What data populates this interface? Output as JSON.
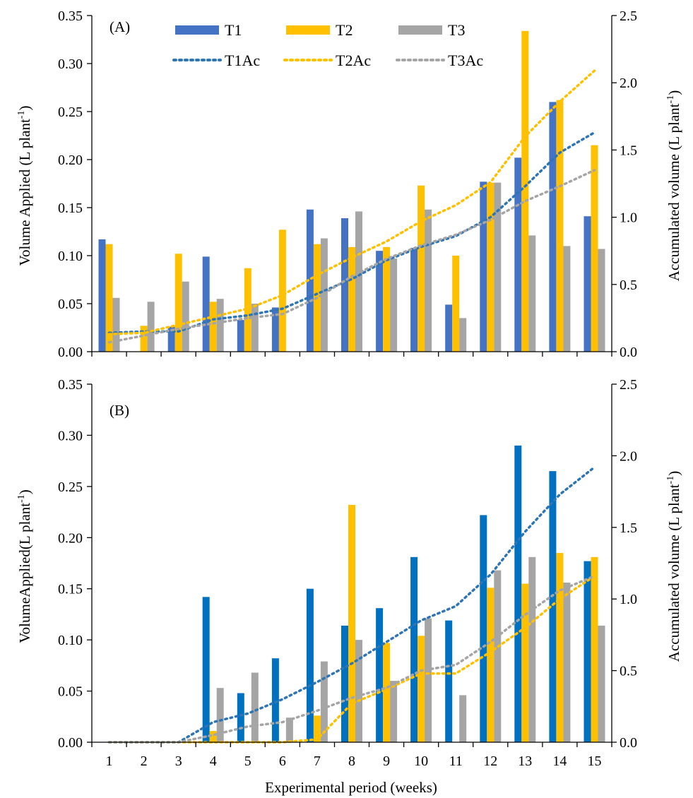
{
  "colors": {
    "T1_A": "#4472C4",
    "T1_B": "#0070C0",
    "T2": "#FFC000",
    "T3": "#A5A5A5",
    "T1Ac": "#2E75B6",
    "T2Ac": "#FFC000",
    "T3Ac": "#A5A5A5"
  },
  "legend": {
    "T1": "T1",
    "T2": "T2",
    "T3": "T3",
    "T1Ac": "T1Ac",
    "T2Ac": "T2Ac",
    "T3Ac": "T3Ac"
  },
  "xlabel": "Experimental period (weeks)",
  "chart_data": [
    {
      "panel": "(A)",
      "type": "bar",
      "categories": [
        "1",
        "2",
        "3",
        "4",
        "5",
        "6",
        "7",
        "8",
        "9",
        "10",
        "11",
        "12",
        "13",
        "14",
        "15"
      ],
      "ylabel_left_main": "Volume  Applied  (L  plant",
      "ylabel_left_sup": "-1",
      "ylabel_left_end": ")",
      "ylabel_right_main": "Accumulated  volume  (L  plant",
      "ylabel_right_sup": "-1",
      "ylabel_right_end": ")",
      "ylim": [
        0,
        0.35
      ],
      "ylim_right": [
        0,
        2.5
      ],
      "yticks": [
        "0.00",
        "0.05",
        "0.10",
        "0.15",
        "0.20",
        "0.25",
        "0.30",
        "0.35"
      ],
      "yticks_right": [
        "0.0",
        "0.5",
        "1.0",
        "1.5",
        "2.0",
        "2.5"
      ],
      "series": [
        {
          "name": "T1",
          "values": [
            0.117,
            0.0,
            0.026,
            0.099,
            0.033,
            0.046,
            0.148,
            0.139,
            0.105,
            0.108,
            0.049,
            0.177,
            0.202,
            0.26,
            0.141
          ]
        },
        {
          "name": "T2",
          "values": [
            0.112,
            0.027,
            0.102,
            0.052,
            0.087,
            0.127,
            0.112,
            0.109,
            0.109,
            0.173,
            0.1,
            0.176,
            0.334,
            0.262,
            0.215
          ]
        },
        {
          "name": "T3",
          "values": [
            0.056,
            0.052,
            0.073,
            0.055,
            0.05,
            0.0,
            0.118,
            0.146,
            0.097,
            0.148,
            0.035,
            0.176,
            0.121,
            0.11,
            0.107
          ]
        }
      ],
      "accumulated": [
        {
          "name": "T1Ac",
          "values": [
            0.14,
            0.15,
            0.15,
            0.24,
            0.27,
            0.32,
            0.43,
            0.54,
            0.68,
            0.78,
            0.86,
            1.0,
            1.23,
            1.48,
            1.63
          ]
        },
        {
          "name": "T2Ac",
          "values": [
            0.13,
            0.14,
            0.2,
            0.26,
            0.32,
            0.42,
            0.57,
            0.7,
            0.82,
            0.97,
            1.09,
            1.26,
            1.6,
            1.86,
            2.09
          ]
        },
        {
          "name": "T3Ac",
          "values": [
            0.07,
            0.12,
            0.17,
            0.21,
            0.25,
            0.28,
            0.4,
            0.56,
            0.69,
            0.79,
            0.87,
            0.98,
            1.12,
            1.23,
            1.35
          ]
        }
      ]
    },
    {
      "panel": "(B)",
      "type": "bar",
      "categories": [
        "1",
        "2",
        "3",
        "4",
        "5",
        "6",
        "7",
        "8",
        "9",
        "10",
        "11",
        "12",
        "13",
        "14",
        "15"
      ],
      "ylabel_left_main": "VolumeApplied(L  plant",
      "ylabel_left_sup": "-1",
      "ylabel_left_end": ")",
      "ylabel_right_main": "Accumulated  volume  (L  plant",
      "ylabel_right_sup": "-1",
      "ylabel_right_end": ")",
      "ylim": [
        0,
        0.35
      ],
      "ylim_right": [
        0,
        2.5
      ],
      "yticks": [
        "0.00",
        "0.05",
        "0.10",
        "0.15",
        "0.20",
        "0.25",
        "0.30",
        "0.35"
      ],
      "yticks_right": [
        "0.0",
        "0.5",
        "1.0",
        "1.5",
        "2.0",
        "2.5"
      ],
      "series": [
        {
          "name": "T1",
          "values": [
            0.0,
            0.0,
            0.0,
            0.142,
            0.048,
            0.082,
            0.15,
            0.114,
            0.131,
            0.181,
            0.119,
            0.222,
            0.29,
            0.265,
            0.177
          ]
        },
        {
          "name": "T2",
          "values": [
            0.0,
            0.0,
            0.0,
            0.011,
            0.0,
            0.0,
            0.026,
            0.232,
            0.097,
            0.104,
            0.0,
            0.151,
            0.155,
            0.185,
            0.181
          ]
        },
        {
          "name": "T3",
          "values": [
            0.0,
            0.0,
            0.0,
            0.053,
            0.068,
            0.024,
            0.079,
            0.1,
            0.06,
            0.121,
            0.046,
            0.168,
            0.181,
            0.156,
            0.114
          ]
        }
      ],
      "accumulated": [
        {
          "name": "T1Ac",
          "values": [
            0.0,
            0.0,
            0.0,
            0.14,
            0.2,
            0.3,
            0.42,
            0.55,
            0.7,
            0.85,
            0.95,
            1.17,
            1.47,
            1.73,
            1.92
          ]
        },
        {
          "name": "T2Ac",
          "values": [
            0.0,
            0.0,
            0.0,
            0.0,
            0.0,
            0.0,
            0.02,
            0.27,
            0.37,
            0.48,
            0.48,
            0.63,
            0.8,
            1.0,
            1.16
          ]
        },
        {
          "name": "T3Ac",
          "values": [
            0.0,
            0.0,
            0.0,
            0.05,
            0.11,
            0.14,
            0.22,
            0.31,
            0.38,
            0.5,
            0.54,
            0.7,
            0.89,
            1.06,
            1.16
          ]
        }
      ]
    }
  ]
}
